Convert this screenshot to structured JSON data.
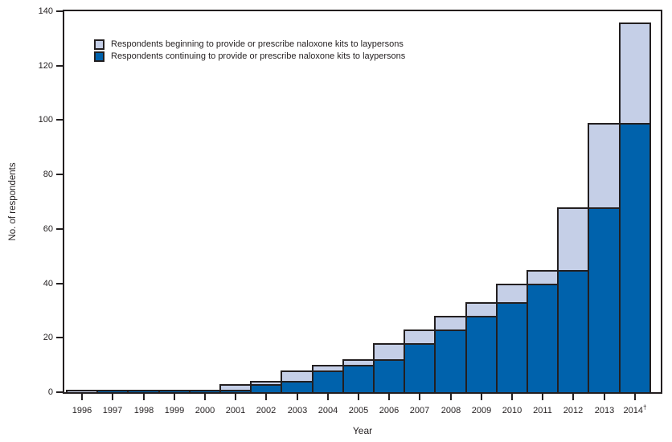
{
  "figure": {
    "ylabel": "No. of respondents",
    "xlabel": "Year"
  },
  "legend": {
    "items": [
      {
        "key": "beginning",
        "label": "Respondents beginning to provide or prescribe naloxone kits to laypersons",
        "color": "#c5cfe7"
      },
      {
        "key": "continuing",
        "label": "Respondents continuing to provide or prescribe naloxone kits to laypersons",
        "color": "#0062ac"
      }
    ]
  },
  "chart_data": {
    "type": "bar",
    "stacked": true,
    "title": "",
    "xlabel": "Year",
    "ylabel": "No. of respondents",
    "ylim": [
      0,
      140
    ],
    "yticks": [
      0,
      20,
      40,
      60,
      80,
      100,
      120,
      140
    ],
    "grid": false,
    "legend_position": "upper-left-inside",
    "outline_color": "#231f20",
    "categories": [
      "1996",
      "1997",
      "1998",
      "1999",
      "2000",
      "2001",
      "2002",
      "2003",
      "2004",
      "2005",
      "2006",
      "2007",
      "2008",
      "2009",
      "2010",
      "2011",
      "2012",
      "2013",
      "2014†"
    ],
    "series": [
      {
        "name": "Respondents continuing to provide or prescribe naloxone kits to laypersons",
        "key": "continuing",
        "color": "#0062ac",
        "values": [
          0,
          1,
          1,
          1,
          1,
          1,
          3,
          4,
          8,
          10,
          12,
          18,
          23,
          28,
          33,
          40,
          45,
          68,
          99
        ]
      },
      {
        "name": "Respondents beginning to provide or prescribe naloxone kits to laypersons",
        "key": "beginning",
        "color": "#c5cfe7",
        "values": [
          1,
          0,
          0,
          0,
          0,
          2,
          1,
          4,
          2,
          2,
          6,
          5,
          5,
          5,
          7,
          5,
          23,
          31,
          37
        ]
      }
    ],
    "totals": [
      1,
      1,
      1,
      1,
      1,
      3,
      4,
      8,
      10,
      12,
      18,
      23,
      28,
      33,
      40,
      45,
      68,
      99,
      136
    ],
    "footnote_marker": "†"
  }
}
